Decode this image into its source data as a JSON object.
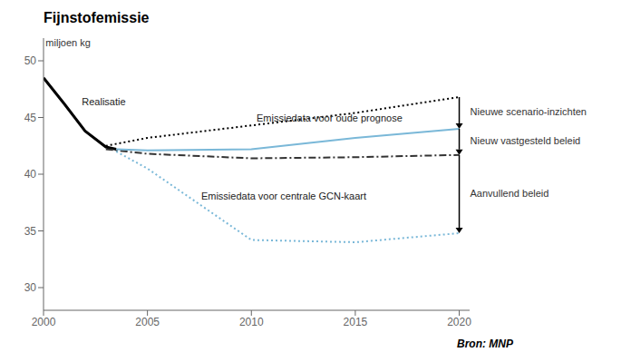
{
  "chart_data": {
    "type": "line",
    "title": "Fijnstofemissie",
    "y_label": "miljoen kg",
    "source": "Bron: MNP",
    "xlim": [
      2000,
      2020.5
    ],
    "xticks": [
      2000,
      2005,
      2010,
      2015,
      2020
    ],
    "ylim": [
      28,
      52
    ],
    "yticks": [
      30,
      35,
      40,
      45,
      50
    ],
    "grid": false,
    "series": [
      {
        "x": [
          2000,
          2001,
          2002,
          2003,
          2003.5
        ],
        "values": [
          48.5,
          46.2,
          43.8,
          42.4,
          42.2
        ],
        "color": "#000000",
        "line_style": "solid"
      },
      {
        "x": [
          2003,
          2005,
          2010,
          2015,
          2020
        ],
        "values": [
          42.5,
          43.2,
          44.3,
          45.4,
          46.8
        ],
        "color": "#000000",
        "line_style": "dotted"
      },
      {
        "x": [
          2003,
          2005,
          2010,
          2015,
          2020
        ],
        "values": [
          42.2,
          41.8,
          41.4,
          41.5,
          41.7
        ],
        "color": "#333333",
        "line_style": "dashdot"
      },
      {
        "x": [
          2003.5,
          2005,
          2010,
          2015,
          2020
        ],
        "values": [
          42.2,
          42.1,
          42.2,
          43.2,
          44.0
        ],
        "color": "#7ab8d8",
        "line_style": "solid"
      },
      {
        "x": [
          2003.5,
          2005,
          2010,
          2015,
          2020
        ],
        "values": [
          42.0,
          40.5,
          34.2,
          34.0,
          34.8
        ],
        "color": "#7ab8d8",
        "line_style": "dotted"
      }
    ],
    "annotations": [
      "Emissiedata voor oude prognose",
      "Emissiedata voor centrale GCN-kaart",
      "Realisatie"
    ],
    "arrows": [
      {
        "x": 2020,
        "from": 46.8,
        "to": 44.0,
        "text": "Nieuwe scenario-inzichten"
      },
      {
        "x": 2020,
        "from": 44.0,
        "to": 41.7,
        "text": "Nieuw vastgesteld beleid"
      },
      {
        "x": 2020,
        "from": 41.7,
        "to": 34.8,
        "text": "Aanvullend beleid"
      }
    ]
  }
}
